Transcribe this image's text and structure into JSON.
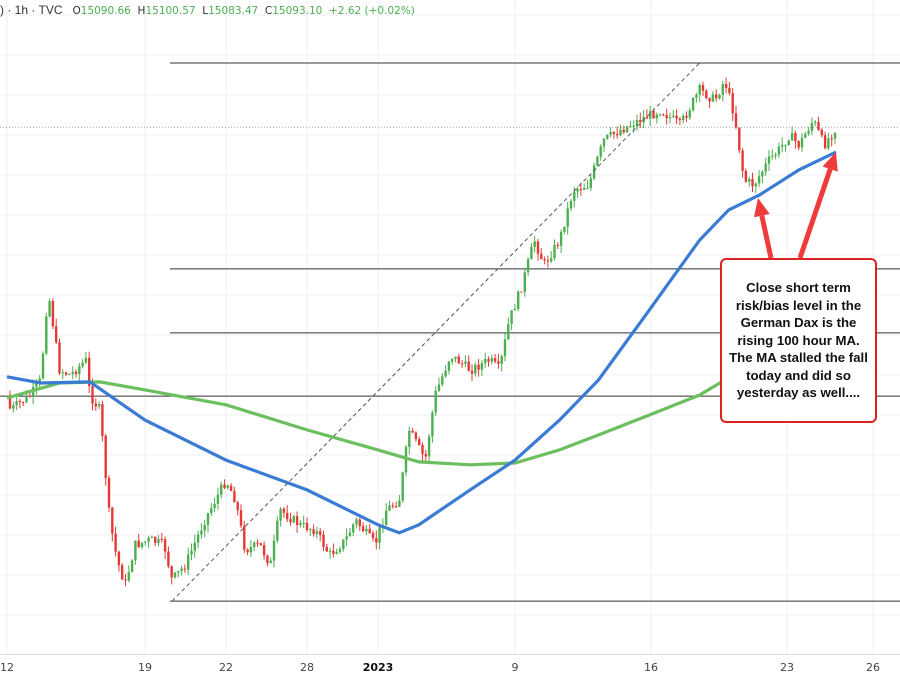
{
  "header": {
    "symbol_tail": ")",
    "interval": "1h",
    "source": "TVC",
    "open_label": "O",
    "open": "15090.66",
    "high_label": "H",
    "high": "15100.57",
    "low_label": "L",
    "low": "15083.47",
    "close_label": "C",
    "close": "15093.10",
    "change": "+2.62",
    "change_pct": "(+0.02%)"
  },
  "annotation": {
    "text": "Close short term risk/bias level in the German Dax is the rising 100 hour MA. The MA stalled the fall today and did so yesterday as well....",
    "border_color": "#dd2222"
  },
  "chart_data": {
    "type": "candlestick",
    "interval": "1h",
    "grid": true,
    "colors": {
      "up": "#4caf50",
      "down": "#e53935",
      "ma100": "#3a7bd5",
      "ma200": "#6cbf5e",
      "arrow": "#ef3b3b"
    },
    "x_tick_labels": [
      {
        "date": "2022-12-12",
        "label": "12"
      },
      {
        "date": "2022-12-19",
        "label": "19"
      },
      {
        "date": "2022-12-22",
        "label": "22"
      },
      {
        "date": "2022-12-28",
        "label": "28"
      },
      {
        "date": "2023-01-02",
        "label": "2023",
        "bold": true
      },
      {
        "date": "2023-01-09",
        "label": "9"
      },
      {
        "date": "2023-01-16",
        "label": "16"
      },
      {
        "date": "2023-01-23",
        "label": "23"
      },
      {
        "date": "2023-01-26",
        "label": "26"
      }
    ],
    "price_path": [
      [
        "2022-12-12T00:00",
        14357
      ],
      [
        "2022-12-12T04:00",
        14316
      ],
      [
        "2022-12-13T05:00",
        14357
      ],
      [
        "2022-12-13T17:00",
        14398
      ],
      [
        "2022-12-14T02:00",
        14646
      ],
      [
        "2022-12-14T16:00",
        14426
      ],
      [
        "2022-12-15T05:00",
        14412
      ],
      [
        "2022-12-16T00:00",
        14453
      ],
      [
        "2022-12-16T05:00",
        14357
      ],
      [
        "2022-12-16T17:00",
        14316
      ],
      [
        "2022-12-17T05:00",
        14013
      ],
      [
        "2022-12-17T14:00",
        13903
      ],
      [
        "2022-12-18T00:00",
        13835
      ],
      [
        "2022-12-18T12:00",
        13945
      ],
      [
        "2022-12-19T05:00",
        13958
      ],
      [
        "2022-12-19T17:00",
        13945
      ],
      [
        "2022-12-20T00:00",
        13848
      ],
      [
        "2022-12-20T12:00",
        13890
      ],
      [
        "2022-12-21T05:00",
        14013
      ],
      [
        "2022-12-22T00:00",
        14123
      ],
      [
        "2022-12-22T17:00",
        14068
      ],
      [
        "2022-12-23T10:00",
        13931
      ],
      [
        "2022-12-24T12:00",
        13945
      ],
      [
        "2022-12-25T07:00",
        13890
      ],
      [
        "2022-12-26T00:00",
        14041
      ],
      [
        "2022-12-27T12:00",
        13999
      ],
      [
        "2022-12-28T14:00",
        13986
      ],
      [
        "2022-12-29T14:00",
        13917
      ],
      [
        "2022-12-30T17:00",
        13958
      ],
      [
        "2022-12-31T10:00",
        14013
      ],
      [
        "2023-01-01T19:00",
        13945
      ],
      [
        "2023-01-02T10:00",
        14041
      ],
      [
        "2023-01-03T02:00",
        14068
      ],
      [
        "2023-01-03T14:00",
        14261
      ],
      [
        "2023-01-04T10:00",
        14178
      ],
      [
        "2023-01-04T22:00",
        14357
      ],
      [
        "2023-01-05T17:00",
        14467
      ],
      [
        "2023-01-06T17:00",
        14426
      ],
      [
        "2023-01-07T17:00",
        14453
      ],
      [
        "2023-01-08T05:00",
        14426
      ],
      [
        "2023-01-08T17:00",
        14563
      ],
      [
        "2023-01-09T07:00",
        14646
      ],
      [
        "2023-01-10T00:00",
        14783
      ],
      [
        "2023-01-10T12:00",
        14715
      ],
      [
        "2023-01-11T07:00",
        14783
      ],
      [
        "2023-01-12T00:00",
        14921
      ],
      [
        "2023-01-12T19:00",
        14935
      ],
      [
        "2023-01-13T14:00",
        15058
      ],
      [
        "2023-01-14T10:00",
        15086
      ],
      [
        "2023-01-15T10:00",
        15113
      ],
      [
        "2023-01-16T12:00",
        15141
      ],
      [
        "2023-01-17T12:00",
        15099
      ],
      [
        "2023-01-18T12:00",
        15196
      ],
      [
        "2023-01-19T07:00",
        15168
      ],
      [
        "2023-01-19T19:00",
        15223
      ],
      [
        "2023-01-20T07:00",
        15127
      ],
      [
        "2023-01-20T19:00",
        14948
      ],
      [
        "2023-01-21T07:00",
        14935
      ],
      [
        "2023-01-22T02:00",
        15003
      ],
      [
        "2023-01-22T14:00",
        15031
      ],
      [
        "2023-01-23T02:00",
        15072
      ],
      [
        "2023-01-23T10:00",
        15044
      ],
      [
        "2023-01-23T22:00",
        15113
      ],
      [
        "2023-01-24T07:00",
        15044
      ],
      [
        "2023-01-24T17:00",
        15093
      ]
    ],
    "ma100": [
      [
        "2022-12-12T00:00",
        14407
      ],
      [
        "2022-12-13T17:00",
        14390
      ],
      [
        "2022-12-16T05:00",
        14393
      ],
      [
        "2022-12-19T00:00",
        14288
      ],
      [
        "2022-12-22T00:00",
        14178
      ],
      [
        "2022-12-28T00:00",
        14096
      ],
      [
        "2023-01-02T00:00",
        14000
      ],
      [
        "2023-01-03T02:00",
        13978
      ],
      [
        "2023-01-04T02:00",
        14000
      ],
      [
        "2023-01-06T17:00",
        14096
      ],
      [
        "2023-01-09T00:00",
        14178
      ],
      [
        "2023-01-11T07:00",
        14288
      ],
      [
        "2023-01-13T07:00",
        14398
      ],
      [
        "2023-01-15T22:00",
        14591
      ],
      [
        "2023-01-18T12:00",
        14783
      ],
      [
        "2023-01-20T00:00",
        14866
      ],
      [
        "2023-01-21T14:00",
        14907
      ],
      [
        "2023-01-23T10:00",
        14976
      ],
      [
        "2023-01-24T17:00",
        15025
      ]
    ],
    "ma200": [
      [
        "2022-12-12T00:00",
        14349
      ],
      [
        "2022-12-14T16:00",
        14390
      ],
      [
        "2022-12-16T17:00",
        14393
      ],
      [
        "2022-12-19T00:00",
        14371
      ],
      [
        "2022-12-22T00:00",
        14330
      ],
      [
        "2022-12-28T00:00",
        14261
      ],
      [
        "2023-01-02T00:00",
        14206
      ],
      [
        "2023-01-04T02:00",
        14173
      ],
      [
        "2023-01-06T17:00",
        14165
      ],
      [
        "2023-01-09T00:00",
        14170
      ],
      [
        "2023-01-11T07:00",
        14206
      ],
      [
        "2023-01-13T07:00",
        14247
      ],
      [
        "2023-01-15T22:00",
        14302
      ],
      [
        "2023-01-18T12:00",
        14357
      ],
      [
        "2023-01-19T19:00",
        14398
      ]
    ],
    "horizontal_levels": [
      15270,
      14704,
      14528,
      14354,
      13790
    ],
    "current_price_line": 15093,
    "trend_line": [
      [
        "2022-12-20T00:00",
        13790
      ],
      [
        "2023-01-18T12:00",
        15270
      ]
    ]
  }
}
